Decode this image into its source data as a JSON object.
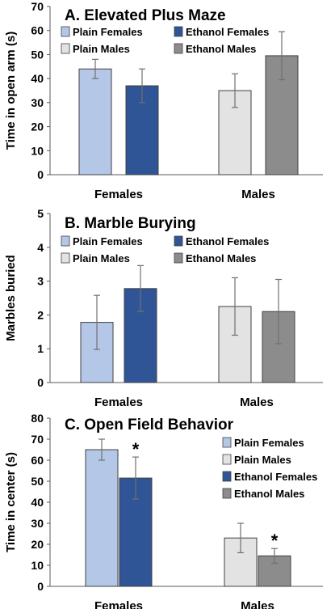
{
  "colors": {
    "plain_females": "#b4c7e7",
    "ethanol_females": "#2f5597",
    "plain_males": "#e3e3e3",
    "ethanol_males": "#8c8c8c",
    "bar_edge": "#404040",
    "error_bar": "#707070"
  },
  "chart_data": [
    {
      "type": "bar",
      "title": "A. Elevated Plus Maze",
      "ylabel": "Time in open arm (s)",
      "ylim": [
        0,
        70
      ],
      "yticks": [
        0,
        10,
        20,
        30,
        40,
        50,
        60,
        70
      ],
      "categories": [
        "Females",
        "Males"
      ],
      "grid": false,
      "legend_position": "top",
      "legend_order": [
        "Plain Females",
        "Ethanol Females",
        "Plain Males",
        "Ethanol Males"
      ],
      "bars": [
        {
          "series": "Plain Females",
          "category": "Females",
          "value": 44,
          "error": 4
        },
        {
          "series": "Ethanol Females",
          "category": "Females",
          "value": 37,
          "error": 7
        },
        {
          "series": "Plain Males",
          "category": "Males",
          "value": 35,
          "error": 7
        },
        {
          "series": "Ethanol Males",
          "category": "Males",
          "value": 49.5,
          "error": 10
        }
      ],
      "annotations": []
    },
    {
      "type": "bar",
      "title": "B. Marble Burying",
      "ylabel": "Marbles buried",
      "ylim": [
        0,
        5
      ],
      "yticks": [
        0,
        1,
        2,
        3,
        4,
        5
      ],
      "categories": [
        "Females",
        "Males"
      ],
      "grid": false,
      "legend_position": "top",
      "legend_order": [
        "Plain Females",
        "Ethanol Females",
        "Plain Males",
        "Ethanol Males"
      ],
      "bars": [
        {
          "series": "Plain Females",
          "category": "Females",
          "value": 1.78,
          "error": 0.8
        },
        {
          "series": "Ethanol Females",
          "category": "Females",
          "value": 2.78,
          "error": 0.68
        },
        {
          "series": "Plain Males",
          "category": "Males",
          "value": 2.25,
          "error": 0.85
        },
        {
          "series": "Ethanol Males",
          "category": "Males",
          "value": 2.1,
          "error": 0.95
        }
      ],
      "annotations": []
    },
    {
      "type": "bar",
      "title": "C. Open Field Behavior",
      "ylabel": "Time in center (s)",
      "ylim": [
        0,
        80
      ],
      "yticks": [
        0,
        10,
        20,
        30,
        40,
        50,
        60,
        70,
        80
      ],
      "categories": [
        "Females",
        "Males"
      ],
      "grid": false,
      "legend_position": "right",
      "legend_order": [
        "Plain Females",
        "Plain Males",
        "Ethanol Females",
        "Ethanol Males"
      ],
      "bars": [
        {
          "series": "Plain Females",
          "category": "Females",
          "value": 65,
          "error": 5
        },
        {
          "series": "Ethanol Females",
          "category": "Females",
          "value": 51.5,
          "error": 10
        },
        {
          "series": "Plain Males",
          "category": "Males",
          "value": 23,
          "error": 7
        },
        {
          "series": "Ethanol Males",
          "category": "Males",
          "value": 14.5,
          "error": 3.5
        }
      ],
      "annotations": [
        {
          "text": "*",
          "series": "Ethanol Females",
          "category": "Females"
        },
        {
          "text": "*",
          "series": "Ethanol Males",
          "category": "Males"
        }
      ]
    }
  ]
}
